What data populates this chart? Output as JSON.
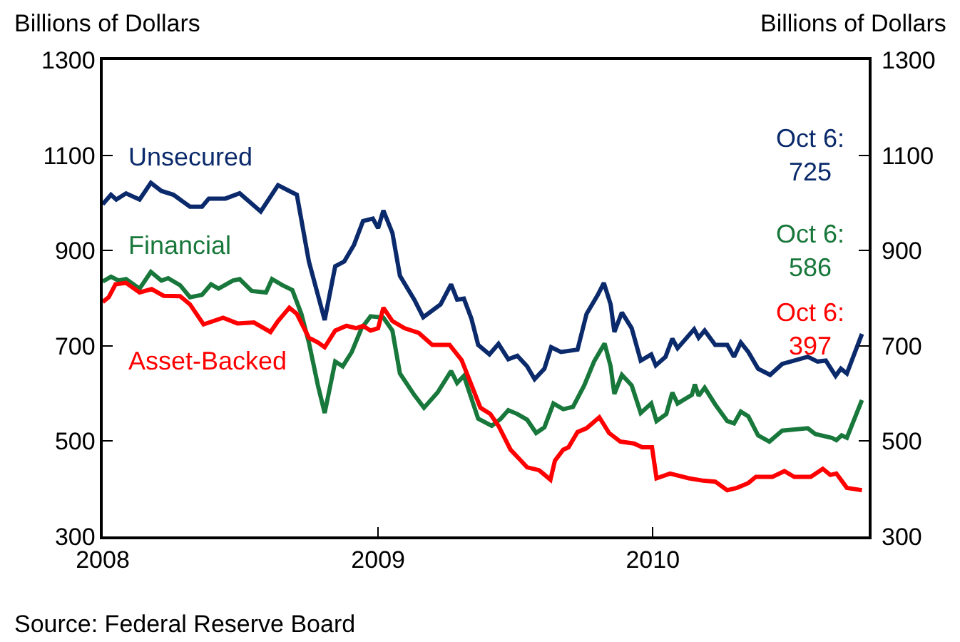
{
  "chart_data": {
    "type": "line",
    "ylabel": "Billions of Dollars",
    "y2label": "Billions of Dollars",
    "xlim": [
      "2008-01-01",
      "2010-10-15"
    ],
    "xticks": [
      {
        "value": "2008-01-01",
        "label": "2008"
      },
      {
        "value": "2009-01-01",
        "label": "2009"
      },
      {
        "value": "2010-01-01",
        "label": "2010"
      }
    ],
    "ylim": [
      300,
      1300
    ],
    "yticks": [
      300,
      500,
      700,
      900,
      1100,
      1300
    ],
    "y2lim": [
      300,
      1300
    ],
    "y2ticks": [
      300,
      500,
      700,
      900,
      1100,
      1300
    ],
    "legend": false,
    "line_style": "solid",
    "marker": "none",
    "series": [
      {
        "name": "Unsecured",
        "color": "#0b2a6b",
        "x": [
          "2008-01-01",
          "2008-01-12",
          "2008-01-19",
          "2008-02-01",
          "2008-02-19",
          "2008-03-05",
          "2008-03-19",
          "2008-04-04",
          "2008-04-26",
          "2008-05-12",
          "2008-05-21",
          "2008-06-12",
          "2008-07-01",
          "2008-07-29",
          "2008-08-21",
          "2008-09-05",
          "2008-09-15",
          "2008-10-01",
          "2008-10-22",
          "2008-11-05",
          "2008-11-17",
          "2008-11-30",
          "2008-12-12",
          "2008-12-25",
          "2009-01-01",
          "2009-01-08",
          "2009-01-20",
          "2009-01-30",
          "2009-02-18",
          "2009-03-02",
          "2009-03-25",
          "2009-04-08",
          "2009-04-16",
          "2009-04-25",
          "2009-05-05",
          "2009-05-14",
          "2009-05-29",
          "2009-06-10",
          "2009-06-23",
          "2009-07-05",
          "2009-07-18",
          "2009-07-28",
          "2009-08-10",
          "2009-08-19",
          "2009-09-01",
          "2009-09-23",
          "2009-10-05",
          "2009-10-20",
          "2009-10-28",
          "2009-11-06",
          "2009-11-11",
          "2009-11-21",
          "2009-12-04",
          "2009-12-16",
          "2009-12-30",
          "2010-01-05",
          "2010-01-18",
          "2010-01-27",
          "2010-02-03",
          "2010-02-25",
          "2010-03-03",
          "2010-03-11",
          "2010-03-25",
          "2010-04-10",
          "2010-04-19",
          "2010-04-28",
          "2010-05-08",
          "2010-05-21",
          "2010-06-06",
          "2010-06-22",
          "2010-07-26",
          "2010-08-08",
          "2010-08-19",
          "2010-09-01",
          "2010-09-08",
          "2010-09-16",
          "2010-10-06"
        ],
        "values": [
          997,
          1017,
          1007,
          1020,
          1007,
          1042,
          1025,
          1017,
          992,
          992,
          1009,
          1009,
          1020,
          982,
          1037,
          1025,
          1017,
          877,
          754,
          867,
          877,
          912,
          962,
          967,
          947,
          984,
          937,
          847,
          797,
          760,
          787,
          829,
          797,
          799,
          757,
          702,
          682,
          704,
          672,
          679,
          657,
          630,
          652,
          697,
          687,
          692,
          767,
          807,
          832,
          787,
          729,
          770,
          737,
          669,
          682,
          659,
          677,
          715,
          695,
          735,
          717,
          732,
          702,
          702,
          677,
          707,
          687,
          652,
          639,
          662,
          677,
          667,
          669,
          637,
          652,
          642,
          725
        ]
      },
      {
        "name": "Financial",
        "color": "#18773a",
        "x": [
          "2008-01-01",
          "2008-01-12",
          "2008-01-22",
          "2008-02-01",
          "2008-02-19",
          "2008-03-05",
          "2008-03-19",
          "2008-03-28",
          "2008-04-13",
          "2008-04-26",
          "2008-05-12",
          "2008-05-24",
          "2008-06-03",
          "2008-06-22",
          "2008-07-01",
          "2008-07-17",
          "2008-08-05",
          "2008-08-13",
          "2008-08-27",
          "2008-09-09",
          "2008-09-21",
          "2008-10-01",
          "2008-10-13",
          "2008-10-22",
          "2008-11-05",
          "2008-11-15",
          "2008-11-27",
          "2008-12-10",
          "2008-12-22",
          "2009-01-08",
          "2009-01-20",
          "2009-01-30",
          "2009-02-18",
          "2009-03-03",
          "2009-03-21",
          "2009-04-08",
          "2009-04-16",
          "2009-04-25",
          "2009-05-14",
          "2009-06-01",
          "2009-06-13",
          "2009-06-23",
          "2009-07-05",
          "2009-07-18",
          "2009-07-30",
          "2009-08-10",
          "2009-08-22",
          "2009-09-04",
          "2009-09-17",
          "2009-10-02",
          "2009-10-15",
          "2009-10-29",
          "2009-11-06",
          "2009-11-11",
          "2009-11-21",
          "2009-12-04",
          "2009-12-16",
          "2009-12-30",
          "2010-01-06",
          "2010-01-19",
          "2010-01-27",
          "2010-02-03",
          "2010-02-22",
          "2010-02-26",
          "2010-03-03",
          "2010-03-11",
          "2010-03-25",
          "2010-04-10",
          "2010-04-19",
          "2010-04-28",
          "2010-05-08",
          "2010-05-21",
          "2010-06-05",
          "2010-06-22",
          "2010-07-26",
          "2010-08-05",
          "2010-08-27",
          "2010-09-02",
          "2010-09-09",
          "2010-09-16",
          "2010-10-06"
        ],
        "values": [
          835,
          845,
          837,
          840,
          820,
          855,
          837,
          842,
          827,
          802,
          807,
          829,
          820,
          837,
          840,
          815,
          812,
          840,
          827,
          817,
          767,
          707,
          617,
          559,
          667,
          657,
          687,
          737,
          762,
          759,
          732,
          642,
          597,
          570,
          602,
          647,
          622,
          637,
          547,
          532,
          547,
          565,
          557,
          545,
          517,
          529,
          579,
          567,
          572,
          617,
          667,
          705,
          657,
          599,
          639,
          617,
          559,
          579,
          542,
          557,
          602,
          579,
          597,
          619,
          595,
          612,
          577,
          542,
          537,
          562,
          552,
          512,
          499,
          522,
          527,
          515,
          507,
          502,
          512,
          507,
          586
        ]
      },
      {
        "name": "Asset-Backed",
        "color": "#ff0000",
        "x": [
          "2008-01-01",
          "2008-01-09",
          "2008-01-18",
          "2008-02-01",
          "2008-02-19",
          "2008-03-06",
          "2008-03-22",
          "2008-04-13",
          "2008-04-26",
          "2008-05-14",
          "2008-06-09",
          "2008-06-28",
          "2008-07-20",
          "2008-08-11",
          "2008-08-21",
          "2008-09-05",
          "2008-09-15",
          "2008-10-01",
          "2008-10-13",
          "2008-10-22",
          "2008-11-05",
          "2008-11-20",
          "2008-12-03",
          "2008-12-12",
          "2008-12-22",
          "2009-01-01",
          "2009-01-08",
          "2009-01-20",
          "2009-02-05",
          "2009-02-24",
          "2009-03-14",
          "2009-04-06",
          "2009-04-22",
          "2009-05-17",
          "2009-05-30",
          "2009-06-10",
          "2009-06-26",
          "2009-07-08",
          "2009-07-18",
          "2009-08-03",
          "2009-08-18",
          "2009-08-24",
          "2009-09-04",
          "2009-09-11",
          "2009-09-23",
          "2009-10-05",
          "2009-10-22",
          "2009-11-04",
          "2009-11-19",
          "2009-12-07",
          "2009-12-18",
          "2009-12-31",
          "2010-01-06",
          "2010-01-24",
          "2010-02-18",
          "2010-03-09",
          "2010-03-25",
          "2010-04-10",
          "2010-04-23",
          "2010-05-08",
          "2010-05-18",
          "2010-06-09",
          "2010-06-25",
          "2010-07-08",
          "2010-07-30",
          "2010-08-15",
          "2010-08-25",
          "2010-09-02",
          "2010-09-16",
          "2010-09-28",
          "2010-10-06"
        ],
        "values": [
          792,
          802,
          829,
          832,
          812,
          819,
          805,
          804,
          787,
          745,
          759,
          747,
          749,
          729,
          752,
          780,
          767,
          717,
          707,
          697,
          732,
          742,
          737,
          742,
          732,
          737,
          780,
          752,
          737,
          727,
          702,
          702,
          670,
          570,
          557,
          532,
          482,
          462,
          445,
          439,
          419,
          459,
          482,
          487,
          519,
          527,
          550,
          517,
          499,
          495,
          487,
          487,
          422,
          432,
          422,
          417,
          415,
          397,
          402,
          412,
          425,
          425,
          437,
          425,
          425,
          442,
          429,
          432,
          402,
          399,
          397
        ]
      }
    ],
    "annotations": [
      "Oct 6:\n725",
      "Oct 6:\n586",
      "Oct 6:\n397",
      "Source: Federal Reserve Board"
    ]
  }
}
